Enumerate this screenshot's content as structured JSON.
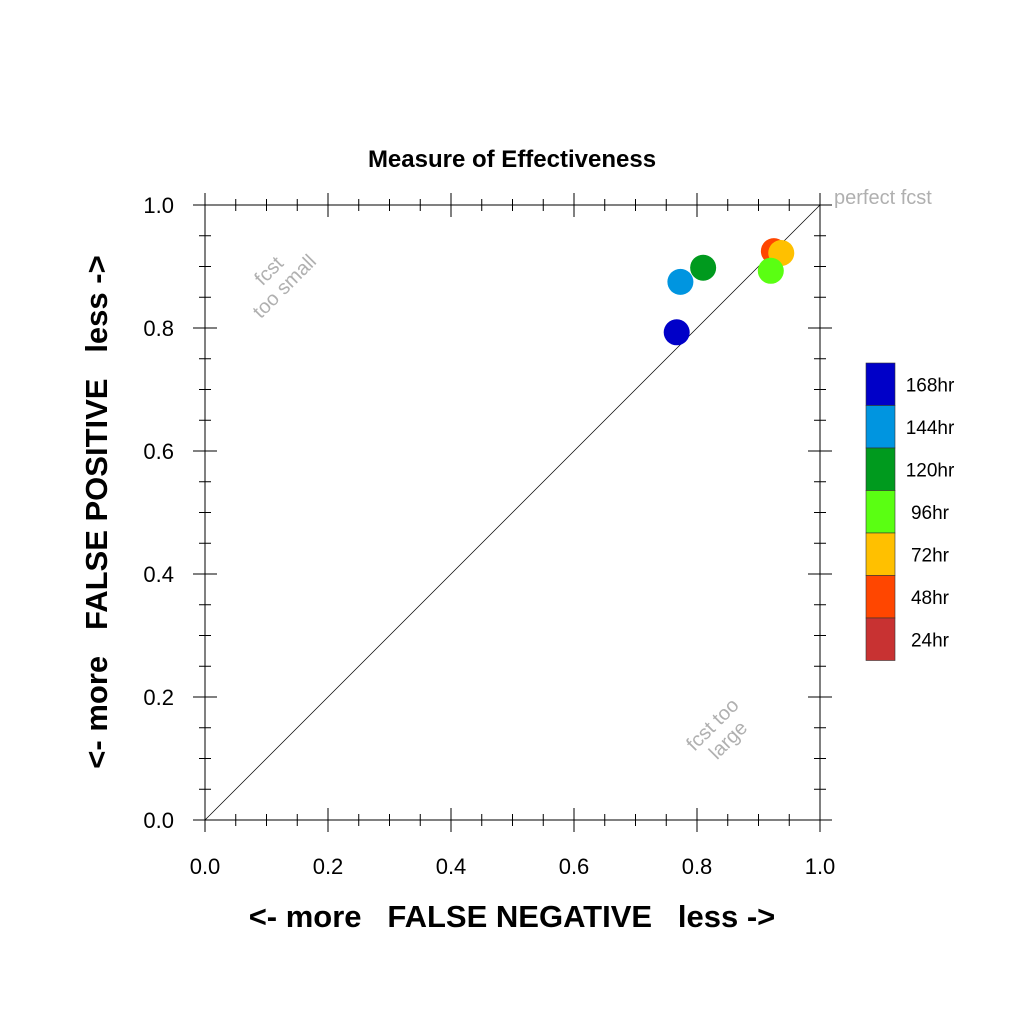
{
  "chart_data": {
    "type": "scatter",
    "title": "Measure of Effectiveness",
    "xlabel": "<- more   FALSE NEGATIVE   less ->",
    "ylabel": "<- more   FALSE POSITIVE   less ->",
    "xlim": [
      0.0,
      1.0
    ],
    "ylim": [
      0.0,
      1.0
    ],
    "xticks": [
      "0.0",
      "0.2",
      "0.4",
      "0.6",
      "0.8",
      "1.0"
    ],
    "yticks": [
      "0.0",
      "0.2",
      "0.4",
      "0.6",
      "0.8",
      "1.0"
    ],
    "grid": false,
    "legend_position": "right",
    "annotations": {
      "perfect": "perfect fcst",
      "small_line1": "fcst",
      "small_line2": "too small",
      "large_line1": "fcst too",
      "large_line2": "large"
    },
    "series": [
      {
        "name": "168hr",
        "color": "#0000c8",
        "x": 0.767,
        "y": 0.793
      },
      {
        "name": "144hr",
        "color": "#0095e0",
        "x": 0.773,
        "y": 0.875
      },
      {
        "name": "120hr",
        "color": "#009a1e",
        "x": 0.81,
        "y": 0.898
      },
      {
        "name": "96hr",
        "color": "#5aff12",
        "x": 0.92,
        "y": 0.893
      },
      {
        "name": "72hr",
        "color": "#ffc000",
        "x": 0.937,
        "y": 0.922
      },
      {
        "name": "48hr",
        "color": "#ff4600",
        "x": 0.925,
        "y": 0.925
      },
      {
        "name": "24hr",
        "color": "#c83232",
        "x": null,
        "y": null
      }
    ],
    "draw_order": [
      "24hr",
      "48hr",
      "72hr",
      "96hr",
      "120hr",
      "144hr",
      "168hr"
    ]
  }
}
